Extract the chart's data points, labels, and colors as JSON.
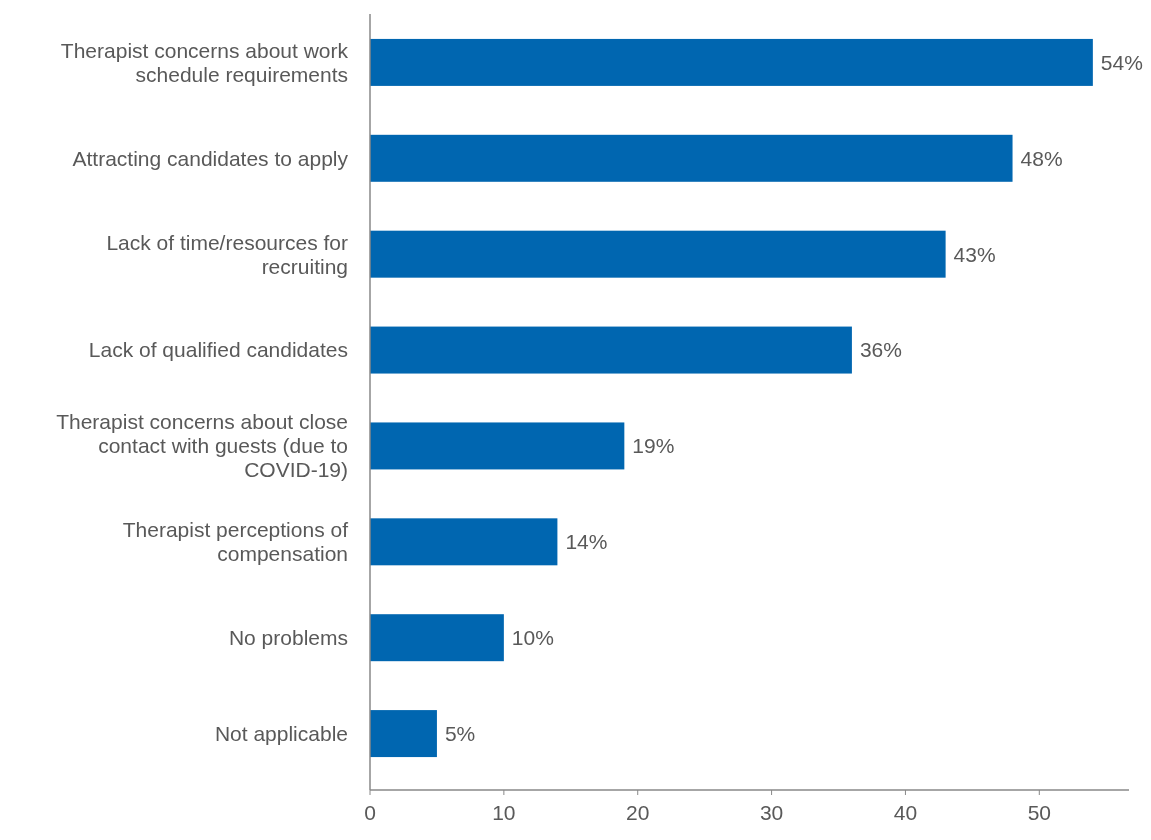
{
  "chart_data": {
    "type": "bar",
    "orientation": "horizontal",
    "categories": [
      "Therapist concerns about work schedule requirements",
      "Attracting candidates to apply",
      "Lack of time/resources for recruiting",
      "Lack of qualified candidates",
      "Therapist concerns about close contact with guests (due to COVID-19)",
      "Therapist perceptions of compensation",
      "No problems",
      "Not applicable"
    ],
    "values": [
      54,
      48,
      43,
      36,
      19,
      14,
      10,
      5
    ],
    "value_labels": [
      "54%",
      "48%",
      "43%",
      "36%",
      "19%",
      "14%",
      "10%",
      "5%"
    ],
    "color": "#0066b0",
    "xlim": [
      0,
      56.7
    ],
    "xticks": [
      0,
      10,
      20,
      30,
      40,
      50
    ]
  }
}
